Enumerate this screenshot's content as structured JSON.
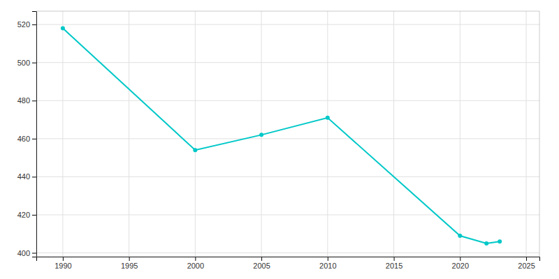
{
  "chart_data": {
    "type": "line",
    "x": [
      1990,
      2000,
      2005,
      2010,
      2020,
      2022,
      2023
    ],
    "values": [
      518,
      454,
      462,
      471,
      409,
      405,
      406
    ],
    "color": "#00c8c8",
    "marker": "circle",
    "xlim": [
      1988,
      2026
    ],
    "ylim": [
      398,
      527
    ],
    "xticks": [
      1990,
      1995,
      2000,
      2005,
      2010,
      2015,
      2020,
      2025
    ],
    "yticks": [
      400,
      420,
      440,
      460,
      480,
      500,
      520
    ],
    "grid": true
  }
}
